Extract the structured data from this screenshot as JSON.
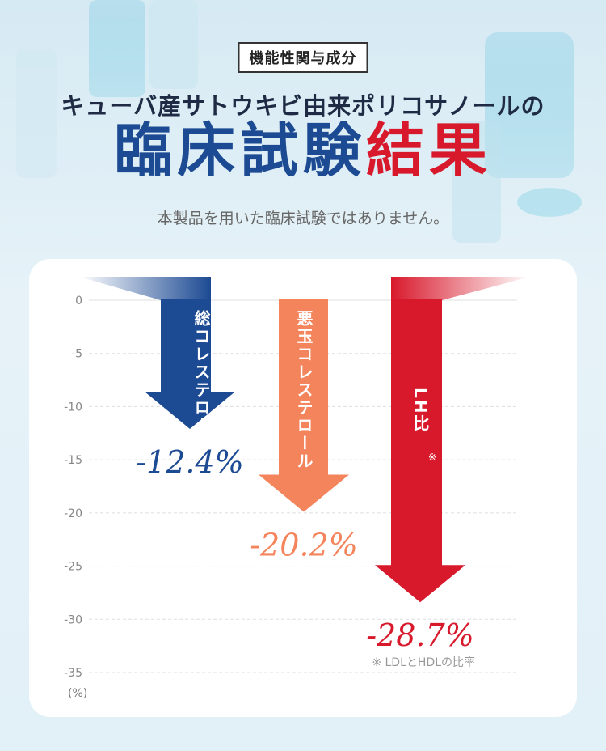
{
  "header": {
    "badge": "機能性関与成分",
    "subtitle": "キューバ産サトウキビ由来ポリコサノールの",
    "title_blue": "臨床試験",
    "title_red": "結果",
    "disclaimer": "本製品を用いた臨床試験ではありません。"
  },
  "colors": {
    "navy": "#1c4a93",
    "orange": "#f3845c",
    "red": "#d8192c",
    "title_blue": "#1c4a93",
    "title_red": "#d8192c"
  },
  "chart_data": {
    "type": "bar",
    "categories": [
      "総コレステロール",
      "悪玉コレステロール",
      "LH比"
    ],
    "values": [
      -12.4,
      -20.2,
      -28.7
    ],
    "value_labels": [
      "-12.4%",
      "-20.2%",
      "-28.7%"
    ],
    "category_marks": [
      "",
      "",
      "※"
    ],
    "ylim": [
      -35,
      0
    ],
    "yticks": [
      0,
      -5,
      -10,
      -15,
      -20,
      -25,
      -30,
      -35
    ],
    "unit_label": "(%)",
    "footnote": "※ LDLとHDLの比率",
    "grid": true
  }
}
